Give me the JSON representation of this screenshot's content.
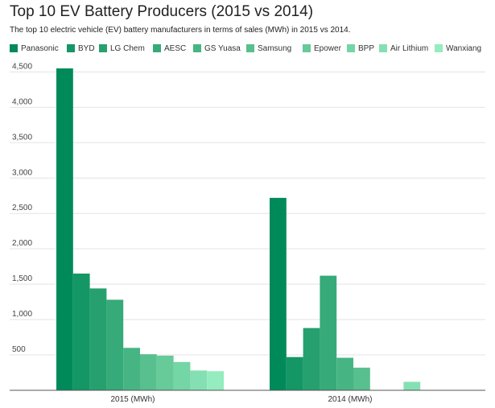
{
  "chart_data": {
    "type": "bar",
    "title": "Top 10 EV Battery Producers (2015 vs 2014)",
    "subtitle": "The top 10 electric vehicle (EV) battery manufacturers in terms of sales (MWh) in 2015 vs 2014.",
    "xlabel": "",
    "ylabel": "",
    "categories": [
      "2015 (MWh)",
      "2014 (MWh)"
    ],
    "ylim": [
      0,
      4700
    ],
    "yticks": [
      500,
      1000,
      1500,
      2000,
      2500,
      3000,
      3500,
      4000,
      4500
    ],
    "ytick_labels": [
      "500",
      "1,000",
      "1,500",
      "2,000",
      "2,500",
      "3,000",
      "3,500",
      "4,000",
      "4,500"
    ],
    "grid": true,
    "legend_position": "top",
    "series": [
      {
        "name": "Panasonic",
        "color": "#008a5a",
        "values": [
          4550,
          2720
        ]
      },
      {
        "name": "BYD",
        "color": "#159665",
        "values": [
          1650,
          470
        ]
      },
      {
        "name": "LG Chem",
        "color": "#27a06f",
        "values": [
          1440,
          880
        ]
      },
      {
        "name": "AESC",
        "color": "#36aa79",
        "values": [
          1280,
          1620
        ]
      },
      {
        "name": "GS Yuasa",
        "color": "#46b583",
        "values": [
          600,
          460
        ]
      },
      {
        "name": "Samsung",
        "color": "#57c08e",
        "values": [
          510,
          320
        ]
      },
      {
        "name": "Epower",
        "color": "#66ca99",
        "values": [
          490,
          0
        ]
      },
      {
        "name": "BPP",
        "color": "#74d5a5",
        "values": [
          400,
          0
        ]
      },
      {
        "name": "Air Lithium",
        "color": "#84e0b2",
        "values": [
          280,
          120
        ]
      },
      {
        "name": "Wanxiang",
        "color": "#94ecbf",
        "values": [
          270,
          0
        ]
      }
    ]
  }
}
